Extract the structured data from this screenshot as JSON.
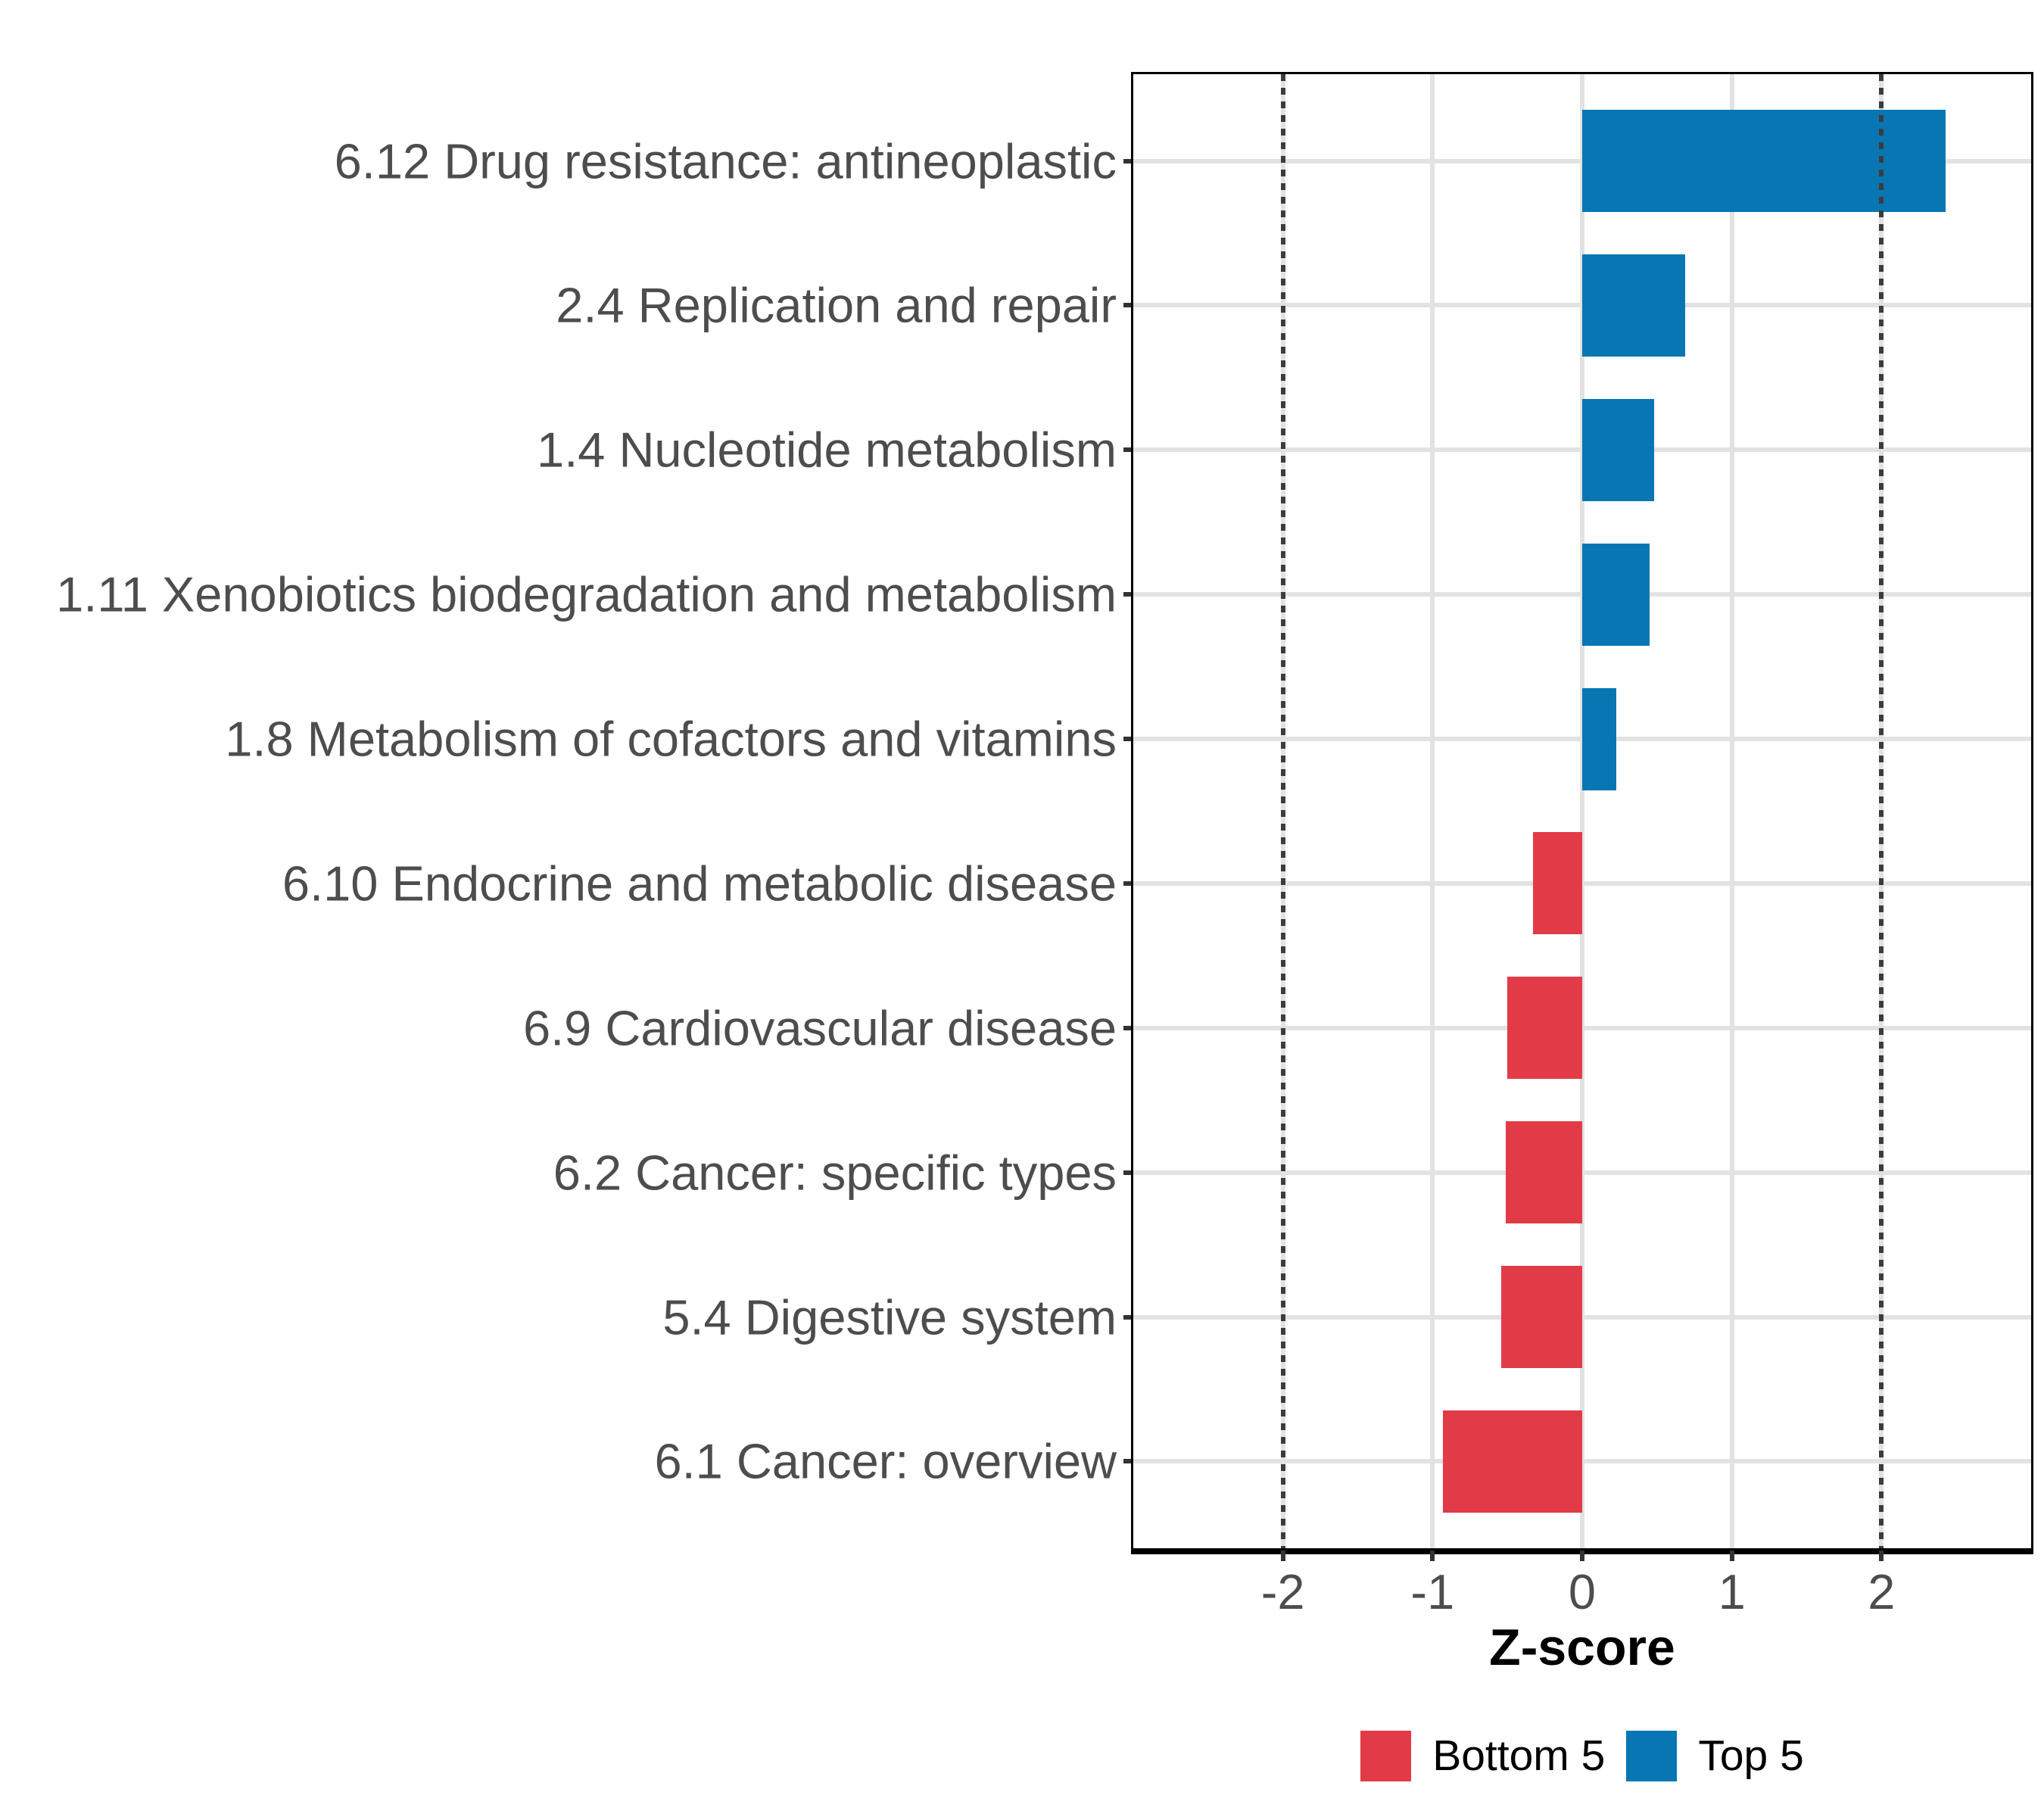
{
  "chart_data": {
    "type": "bar",
    "orientation": "horizontal",
    "title": "",
    "xlabel": "Z-score",
    "xlim": [
      -3,
      3
    ],
    "x_ticks": [
      "-2",
      "-1",
      "0",
      "1",
      "2"
    ],
    "x_tick_values": [
      -2,
      -1,
      0,
      1,
      2
    ],
    "reference_lines": {
      "values": [
        -2,
        2
      ],
      "style": "dotted",
      "color": "#3C3C3C"
    },
    "grid": {
      "show": true,
      "color": "#E2E2E2"
    },
    "categories": [
      "6.12 Drug resistance: antineoplastic",
      "2.4 Replication and repair",
      "1.4 Nucleotide metabolism",
      "1.11 Xenobiotics biodegradation and metabolism",
      "1.8 Metabolism of cofactors and vitamins",
      "6.10 Endocrine and metabolic disease",
      "6.9 Cardiovascular disease",
      "6.2 Cancer: specific types",
      "5.4 Digestive system",
      "6.1 Cancer: overview"
    ],
    "items": [
      {
        "label": "6.12 Drug resistance: antineoplastic",
        "value": 2.43,
        "group": "Top 5"
      },
      {
        "label": "2.4 Replication and repair",
        "value": 0.69,
        "group": "Top 5"
      },
      {
        "label": "1.4 Nucleotide metabolism",
        "value": 0.48,
        "group": "Top 5"
      },
      {
        "label": "1.11 Xenobiotics biodegradation and metabolism",
        "value": 0.45,
        "group": "Top 5"
      },
      {
        "label": "1.8 Metabolism of cofactors and vitamins",
        "value": 0.23,
        "group": "Top 5"
      },
      {
        "label": "6.10 Endocrine and metabolic disease",
        "value": -0.33,
        "group": "Bottom 5"
      },
      {
        "label": "6.9 Cardiovascular disease",
        "value": -0.5,
        "group": "Bottom 5"
      },
      {
        "label": "6.2 Cancer: specific types",
        "value": -0.51,
        "group": "Bottom 5"
      },
      {
        "label": "5.4 Digestive system",
        "value": -0.54,
        "group": "Bottom 5"
      },
      {
        "label": "6.1 Cancer: overview",
        "value": -0.93,
        "group": "Bottom 5"
      }
    ],
    "colors": {
      "Bottom 5": "#E23B48",
      "Top 5": "#0776B3"
    },
    "legend": {
      "position": "bottom",
      "entries": [
        {
          "label": "Bottom 5",
          "color": "#E23B48"
        },
        {
          "label": "Top 5",
          "color": "#0776B3"
        }
      ]
    }
  }
}
